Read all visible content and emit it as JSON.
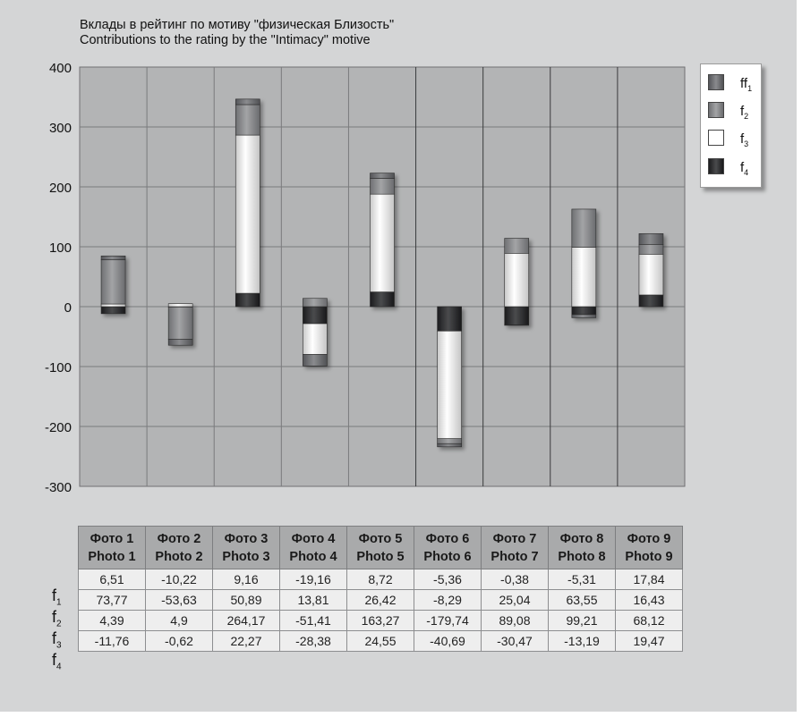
{
  "title_ru": "Вклады в рейтинг по мотиву \"физическая Близость\"",
  "title_en": "Contributions to the rating by the \"Intimacy\" motive",
  "colors": {
    "panel_bg": "#d4d5d6",
    "plot_bg": "#b3b4b5",
    "f1": "#747578",
    "f2": "#8f9092",
    "f3": "#ffffff",
    "f4": "#2b2c2e"
  },
  "chart_data": {
    "type": "bar",
    "stacked": true,
    "categories": [
      "Photo 1",
      "Photo 2",
      "Photo 3",
      "Photo 4",
      "Photo 5",
      "Photo 6",
      "Photo 7",
      "Photo 8",
      "Photo 9"
    ],
    "ylim": [
      -300,
      400
    ],
    "yticks": [
      400,
      300,
      200,
      100,
      0,
      -100,
      -200,
      -300
    ],
    "grid": true,
    "legend_position": "top-right",
    "series": [
      {
        "name": "f1",
        "sub": "1",
        "values": [
          6.51,
          -10.22,
          9.16,
          -19.16,
          8.72,
          -5.36,
          -0.38,
          -5.31,
          17.84
        ]
      },
      {
        "name": "f2",
        "sub": "2",
        "values": [
          73.77,
          -53.63,
          50.89,
          13.81,
          26.42,
          -8.29,
          25.04,
          63.55,
          16.43
        ]
      },
      {
        "name": "f3",
        "sub": "3",
        "values": [
          4.39,
          4.9,
          264.17,
          -51.41,
          163.27,
          -179.74,
          89.08,
          99.21,
          68.12
        ]
      },
      {
        "name": "f4",
        "sub": "4",
        "values": [
          -11.76,
          -0.62,
          22.27,
          -28.38,
          24.55,
          -40.69,
          -30.47,
          -13.19,
          19.47
        ]
      }
    ]
  },
  "table": {
    "headers": [
      {
        "ru": "Фото 1",
        "en": "Photo 1"
      },
      {
        "ru": "Фото 2",
        "en": "Photo 2"
      },
      {
        "ru": "Фото 3",
        "en": "Photo 3"
      },
      {
        "ru": "Фото 4",
        "en": "Photo 4"
      },
      {
        "ru": "Фото 5",
        "en": "Photo 5"
      },
      {
        "ru": "Фото 6",
        "en": "Photo 6"
      },
      {
        "ru": "Фото 7",
        "en": "Photo 7"
      },
      {
        "ru": "Фото 8",
        "en": "Photo 8"
      },
      {
        "ru": "Фото 9",
        "en": "Photo 9"
      }
    ],
    "rows": [
      {
        "label": "f",
        "sub": "1",
        "cells": [
          "6,51",
          "-10,22",
          "9,16",
          "-19,16",
          "8,72",
          "-5,36",
          "-0,38",
          "-5,31",
          "17,84"
        ]
      },
      {
        "label": "f",
        "sub": "2",
        "cells": [
          "73,77",
          "-53,63",
          "50,89",
          "13,81",
          "26,42",
          "-8,29",
          "25,04",
          "63,55",
          "16,43"
        ]
      },
      {
        "label": "f",
        "sub": "3",
        "cells": [
          "4,39",
          "4,9",
          "264,17",
          "-51,41",
          "163,27",
          "-179,74",
          "89,08",
          "99,21",
          "68,12"
        ]
      },
      {
        "label": "f",
        "sub": "4",
        "cells": [
          "-11,76",
          "-0,62",
          "22,27",
          "-28,38",
          "24,55",
          "-40,69",
          "-30,47",
          "-13,19",
          "19,47"
        ]
      }
    ]
  }
}
